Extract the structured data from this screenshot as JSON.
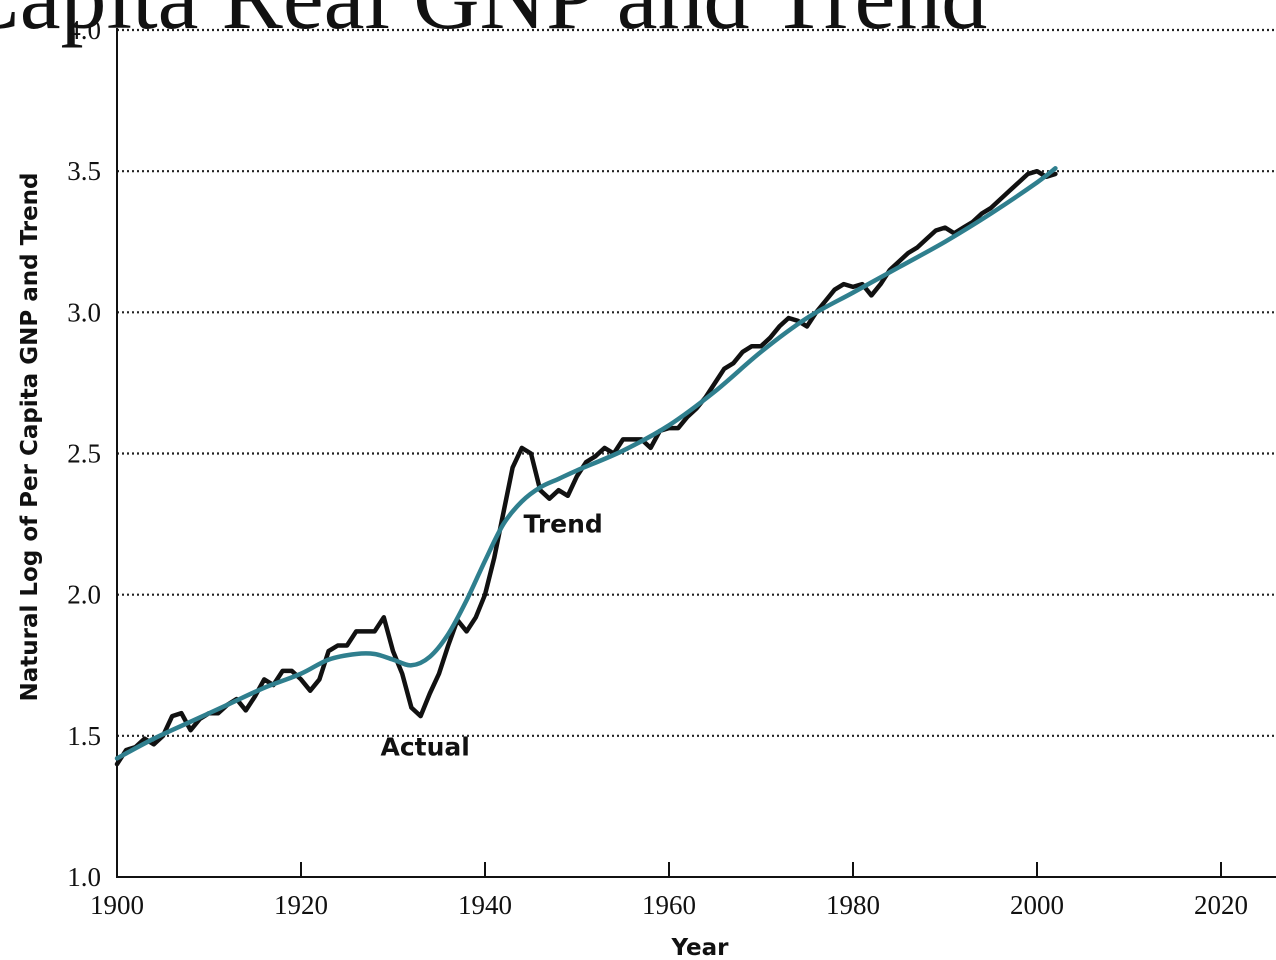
{
  "chart_data": {
    "type": "line",
    "title": "Per Capita Real GNP and Trend",
    "xlabel": "Year",
    "ylabel": "Natural Log of Per Capita GNP and Trend",
    "xlim": [
      1900,
      2020
    ],
    "ylim": [
      1.0,
      4.0
    ],
    "x_ticks": [
      1900,
      1920,
      1940,
      1960,
      1980,
      2000,
      2020
    ],
    "x_tick_labels": [
      "1900",
      "1920",
      "1940",
      "1960",
      "1980",
      "2000",
      "2020"
    ],
    "y_ticks": [
      1.0,
      1.5,
      2.0,
      2.5,
      3.0,
      3.5,
      4.0
    ],
    "y_tick_labels": [
      "1.0",
      "1.5",
      "2.0",
      "2.5",
      "3.0",
      "3.5",
      "4.0"
    ],
    "grid": "horizontal dotted",
    "annotations": [
      {
        "text": "Trend",
        "x": 1948.5,
        "y": 2.22
      },
      {
        "text": "Actual",
        "x": 1933.5,
        "y": 1.43
      }
    ],
    "series": [
      {
        "name": "Actual",
        "color": "#111111",
        "x": [
          1900,
          1901,
          1902,
          1903,
          1904,
          1905,
          1906,
          1907,
          1908,
          1909,
          1910,
          1911,
          1912,
          1913,
          1914,
          1915,
          1916,
          1917,
          1918,
          1919,
          1920,
          1921,
          1922,
          1923,
          1924,
          1925,
          1926,
          1927,
          1928,
          1929,
          1930,
          1931,
          1932,
          1933,
          1934,
          1935,
          1936,
          1937,
          1938,
          1939,
          1940,
          1941,
          1942,
          1943,
          1944,
          1945,
          1946,
          1947,
          1948,
          1949,
          1950,
          1951,
          1952,
          1953,
          1954,
          1955,
          1956,
          1957,
          1958,
          1959,
          1960,
          1961,
          1962,
          1963,
          1964,
          1965,
          1966,
          1967,
          1968,
          1969,
          1970,
          1971,
          1972,
          1973,
          1974,
          1975,
          1976,
          1977,
          1978,
          1979,
          1980,
          1981,
          1982,
          1983,
          1984,
          1985,
          1986,
          1987,
          1988,
          1989,
          1990,
          1991,
          1992,
          1993,
          1994,
          1995,
          1996,
          1997,
          1998,
          1999,
          2000,
          2001,
          2002
        ],
        "values": [
          1.4,
          1.45,
          1.46,
          1.49,
          1.47,
          1.5,
          1.57,
          1.58,
          1.52,
          1.56,
          1.58,
          1.58,
          1.61,
          1.63,
          1.59,
          1.64,
          1.7,
          1.68,
          1.73,
          1.73,
          1.7,
          1.66,
          1.7,
          1.8,
          1.82,
          1.82,
          1.87,
          1.87,
          1.87,
          1.92,
          1.8,
          1.72,
          1.6,
          1.57,
          1.65,
          1.72,
          1.82,
          1.91,
          1.87,
          1.92,
          2.0,
          2.13,
          2.29,
          2.45,
          2.52,
          2.5,
          2.37,
          2.34,
          2.37,
          2.35,
          2.42,
          2.47,
          2.49,
          2.52,
          2.5,
          2.55,
          2.55,
          2.55,
          2.52,
          2.58,
          2.59,
          2.59,
          2.63,
          2.66,
          2.7,
          2.75,
          2.8,
          2.82,
          2.86,
          2.88,
          2.88,
          2.91,
          2.95,
          2.98,
          2.97,
          2.95,
          3.0,
          3.04,
          3.08,
          3.1,
          3.09,
          3.1,
          3.06,
          3.1,
          3.15,
          3.18,
          3.21,
          3.23,
          3.26,
          3.29,
          3.3,
          3.28,
          3.3,
          3.32,
          3.35,
          3.37,
          3.4,
          3.43,
          3.46,
          3.49,
          3.5,
          3.48,
          3.49
        ]
      },
      {
        "name": "Trend",
        "color": "#2f7f8e",
        "x": [
          1900,
          1904,
          1908,
          1912,
          1916,
          1920,
          1923,
          1926,
          1928,
          1930,
          1932,
          1934,
          1936,
          1938,
          1940,
          1942,
          1944,
          1946,
          1948,
          1950,
          1955,
          1960,
          1965,
          1970,
          1975,
          1980,
          1985,
          1990,
          1995,
          2000,
          2002
        ],
        "values": [
          1.42,
          1.49,
          1.55,
          1.61,
          1.67,
          1.72,
          1.77,
          1.79,
          1.79,
          1.77,
          1.75,
          1.78,
          1.86,
          1.98,
          2.12,
          2.25,
          2.33,
          2.38,
          2.41,
          2.44,
          2.51,
          2.6,
          2.72,
          2.86,
          2.98,
          3.07,
          3.16,
          3.25,
          3.35,
          3.46,
          3.51
        ]
      }
    ]
  }
}
